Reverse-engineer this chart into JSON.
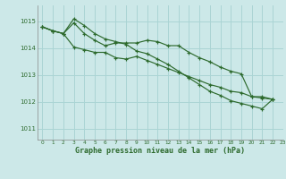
{
  "xlabel": "Graphe pression niveau de la mer (hPa)",
  "bg_color": "#cce8e8",
  "grid_color": "#aad4d4",
  "line_color": "#2d6a2d",
  "xlim": [
    -0.5,
    23
  ],
  "ylim": [
    1010.6,
    1015.6
  ],
  "yticks": [
    1011,
    1012,
    1013,
    1014,
    1015
  ],
  "xticks": [
    0,
    1,
    2,
    3,
    4,
    5,
    6,
    7,
    8,
    9,
    10,
    11,
    12,
    13,
    14,
    15,
    16,
    17,
    18,
    19,
    20,
    21,
    22,
    23
  ],
  "series": [
    [
      1014.8,
      1014.65,
      1014.55,
      1014.95,
      1014.55,
      1014.3,
      1014.1,
      1014.2,
      1014.2,
      1014.2,
      1014.3,
      1014.25,
      1014.1,
      1014.1,
      1013.85,
      1013.65,
      1013.5,
      1013.3,
      1013.15,
      1013.05,
      1012.2,
      1012.2,
      1012.1
    ],
    [
      1014.8,
      1014.65,
      1014.55,
      1015.1,
      1014.85,
      1014.55,
      1014.35,
      1014.25,
      1014.15,
      1013.9,
      1013.8,
      1013.6,
      1013.4,
      1013.15,
      1012.9,
      1012.65,
      1012.4,
      1012.25,
      1012.05,
      1011.95,
      1011.85,
      1011.75,
      1012.1
    ],
    [
      1014.8,
      1014.65,
      1014.55,
      1014.05,
      1013.95,
      1013.85,
      1013.85,
      1013.65,
      1013.6,
      1013.7,
      1013.55,
      1013.4,
      1013.25,
      1013.1,
      1012.95,
      1012.8,
      1012.65,
      1012.55,
      1012.4,
      1012.35,
      1012.2,
      1012.15,
      1012.1
    ]
  ]
}
